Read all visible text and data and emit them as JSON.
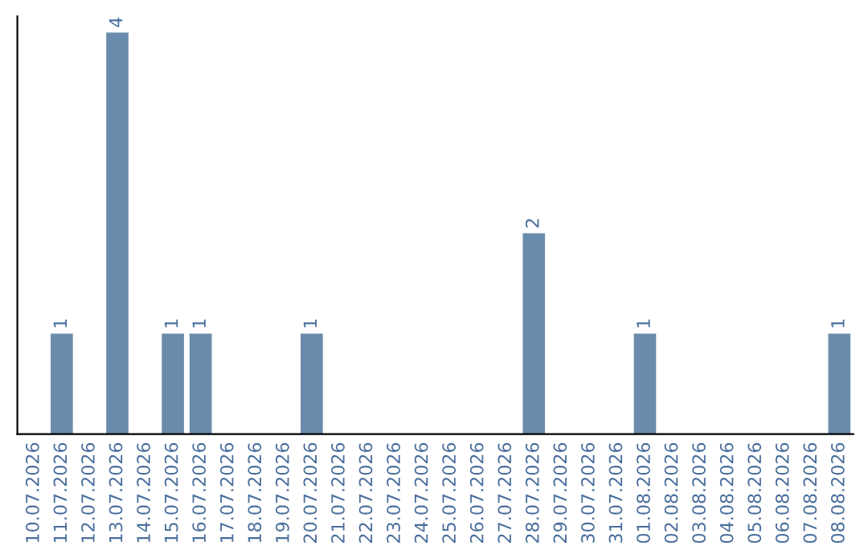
{
  "chart_data": {
    "type": "bar",
    "categories": [
      "10.07.2026",
      "11.07.2026",
      "12.07.2026",
      "13.07.2026",
      "14.07.2026",
      "15.07.2026",
      "16.07.2026",
      "17.07.2026",
      "18.07.2026",
      "19.07.2026",
      "20.07.2026",
      "21.07.2026",
      "22.07.2026",
      "23.07.2026",
      "24.07.2026",
      "25.07.2026",
      "26.07.2026",
      "27.07.2026",
      "28.07.2026",
      "29.07.2026",
      "30.07.2026",
      "31.07.2026",
      "01.08.2026",
      "02.08.2026",
      "03.08.2026",
      "04.08.2026",
      "05.08.2026",
      "06.08.2026",
      "07.08.2026",
      "08.08.2026"
    ],
    "values": [
      0,
      1,
      0,
      4,
      0,
      1,
      1,
      0,
      0,
      0,
      1,
      0,
      0,
      0,
      0,
      0,
      0,
      0,
      2,
      0,
      0,
      0,
      1,
      0,
      0,
      0,
      0,
      0,
      0,
      1
    ],
    "value_labels": [
      null,
      "1",
      null,
      "4",
      null,
      "1",
      "1",
      null,
      null,
      null,
      "1",
      null,
      null,
      null,
      null,
      null,
      null,
      null,
      "2",
      null,
      null,
      null,
      "1",
      null,
      null,
      null,
      null,
      null,
      null,
      "1"
    ],
    "color": "#6a8bab",
    "tick_labels": "x",
    "grid": false,
    "legend": false
  }
}
